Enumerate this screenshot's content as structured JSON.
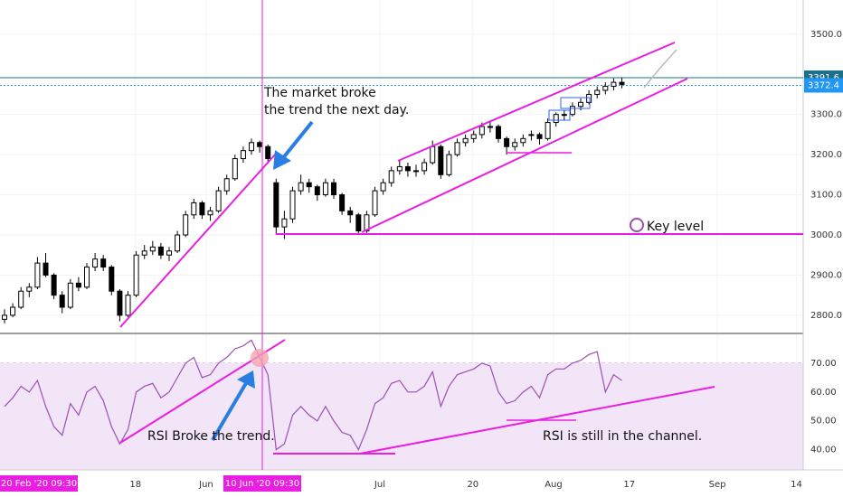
{
  "chart_data": [
    {
      "type": "candlestick",
      "ohlc": [
        [
          2790,
          2815,
          2780,
          2800
        ],
        [
          2800,
          2830,
          2795,
          2820
        ],
        [
          2820,
          2870,
          2815,
          2860
        ],
        [
          2860,
          2880,
          2845,
          2870
        ],
        [
          2870,
          2945,
          2865,
          2930
        ],
        [
          2930,
          2955,
          2895,
          2900
        ],
        [
          2900,
          2905,
          2840,
          2850
        ],
        [
          2850,
          2860,
          2805,
          2820
        ],
        [
          2820,
          2890,
          2815,
          2880
        ],
        [
          2880,
          2895,
          2860,
          2870
        ],
        [
          2870,
          2930,
          2865,
          2920
        ],
        [
          2920,
          2955,
          2910,
          2940
        ],
        [
          2940,
          2950,
          2910,
          2920
        ],
        [
          2920,
          2925,
          2850,
          2860
        ],
        [
          2860,
          2865,
          2785,
          2800
        ],
        [
          2800,
          2860,
          2795,
          2850
        ],
        [
          2850,
          2960,
          2845,
          2950
        ],
        [
          2950,
          2975,
          2940,
          2960
        ],
        [
          2960,
          2985,
          2950,
          2970
        ],
        [
          2970,
          2980,
          2940,
          2950
        ],
        [
          2950,
          2970,
          2935,
          2960
        ],
        [
          2960,
          3010,
          2955,
          3000
        ],
        [
          3000,
          3060,
          2995,
          3050
        ],
        [
          3050,
          3090,
          3040,
          3080
        ],
        [
          3080,
          3085,
          3040,
          3050
        ],
        [
          3050,
          3070,
          3035,
          3060
        ],
        [
          3060,
          3120,
          3055,
          3110
        ],
        [
          3110,
          3150,
          3100,
          3140
        ],
        [
          3140,
          3200,
          3135,
          3190
        ],
        [
          3190,
          3220,
          3180,
          3210
        ],
        [
          3210,
          3240,
          3200,
          3230
        ],
        [
          3230,
          3235,
          3205,
          3220
        ],
        [
          3220,
          3225,
          3180,
          3190
        ],
        [
          3130,
          3140,
          3000,
          3020
        ],
        [
          3020,
          3060,
          2990,
          3040
        ],
        [
          3040,
          3120,
          3030,
          3110
        ],
        [
          3110,
          3150,
          3100,
          3130
        ],
        [
          3130,
          3140,
          3105,
          3120
        ],
        [
          3120,
          3125,
          3085,
          3100
        ],
        [
          3100,
          3140,
          3095,
          3130
        ],
        [
          3130,
          3140,
          3090,
          3100
        ],
        [
          3100,
          3105,
          3050,
          3060
        ],
        [
          3060,
          3070,
          3030,
          3050
        ],
        [
          3050,
          3055,
          3000,
          3010
        ],
        [
          3010,
          3060,
          3005,
          3050
        ],
        [
          3050,
          3120,
          3045,
          3110
        ],
        [
          3110,
          3140,
          3100,
          3130
        ],
        [
          3130,
          3170,
          3120,
          3160
        ],
        [
          3160,
          3185,
          3150,
          3170
        ],
        [
          3170,
          3180,
          3145,
          3160
        ],
        [
          3160,
          3175,
          3145,
          3160
        ],
        [
          3160,
          3190,
          3150,
          3180
        ],
        [
          3180,
          3235,
          3175,
          3220
        ],
        [
          3220,
          3225,
          3140,
          3150
        ],
        [
          3150,
          3210,
          3145,
          3200
        ],
        [
          3200,
          3240,
          3195,
          3230
        ],
        [
          3230,
          3250,
          3220,
          3240
        ],
        [
          3240,
          3260,
          3230,
          3250
        ],
        [
          3250,
          3280,
          3240,
          3270
        ],
        [
          3270,
          3285,
          3255,
          3270
        ],
        [
          3270,
          3275,
          3230,
          3240
        ],
        [
          3240,
          3245,
          3200,
          3220
        ],
        [
          3220,
          3240,
          3210,
          3230
        ],
        [
          3230,
          3250,
          3220,
          3240
        ],
        [
          3250,
          3260,
          3235,
          3250
        ],
        [
          3250,
          3255,
          3225,
          3240
        ],
        [
          3240,
          3290,
          3235,
          3280
        ],
        [
          3280,
          3305,
          3270,
          3300
        ],
        [
          3300,
          3310,
          3285,
          3300
        ],
        [
          3300,
          3330,
          3295,
          3320
        ],
        [
          3320,
          3340,
          3310,
          3330
        ],
        [
          3330,
          3360,
          3325,
          3350
        ],
        [
          3350,
          3370,
          3340,
          3360
        ],
        [
          3360,
          3380,
          3350,
          3370
        ],
        [
          3370,
          3390,
          3360,
          3380
        ],
        [
          3380,
          3392,
          3365,
          3375
        ]
      ],
      "up_color": "#ffffff",
      "down_color": "#000000",
      "ylim": [
        2757,
        3585
      ],
      "yticks": [
        {
          "value": 2800,
          "label": "2800.0"
        },
        {
          "value": 2900,
          "label": "2900.0"
        },
        {
          "value": 3000,
          "label": "3000.0"
        },
        {
          "value": 3100,
          "label": "3100.0"
        },
        {
          "value": 3200,
          "label": "3200.0"
        },
        {
          "value": 3300,
          "label": "3300.0"
        },
        {
          "value": 3500,
          "label": "3500.0"
        }
      ],
      "xlim": [
        -0.55,
        97.03
      ],
      "xticks": [
        {
          "value": 15.9,
          "label": "18"
        },
        {
          "value": 24.5,
          "label": "Jun"
        },
        {
          "value": 45.6,
          "label": "Jul"
        },
        {
          "value": 56.9,
          "label": "20"
        },
        {
          "value": 66.7,
          "label": "Aug"
        },
        {
          "value": 75.9,
          "label": "17"
        },
        {
          "value": 86.6,
          "label": "Sep"
        },
        {
          "value": 96.2,
          "label": "14"
        }
      ],
      "grid": true,
      "price_lines": [
        {
          "value": 3391.6,
          "color": "#1e6f8a"
        },
        {
          "value": 3372.4,
          "color": "#2196f3"
        }
      ],
      "annotations": [
        "The market broke",
        "the trend the next day.",
        "Key level"
      ],
      "crosshair_labels": [
        "20 Feb '20   09:30",
        "10 Jun '20   09:30"
      ]
    },
    {
      "type": "line",
      "values": [
        55,
        58,
        62,
        60,
        64,
        55,
        48,
        45,
        56,
        52,
        60,
        62,
        57,
        48,
        42,
        47,
        60,
        62,
        63,
        58,
        60,
        65,
        70,
        72,
        65,
        66,
        70,
        72,
        75,
        76,
        78,
        72,
        66,
        40,
        42,
        52,
        55,
        52,
        50,
        55,
        50,
        46,
        45,
        40,
        47,
        56,
        58,
        63,
        64,
        60,
        60,
        62,
        67,
        55,
        62,
        66,
        67,
        68,
        70,
        69,
        60,
        56,
        57,
        60,
        62,
        58,
        66,
        68,
        68,
        70,
        71,
        73,
        74,
        60,
        66,
        64
      ],
      "color": "#9b4fb5",
      "ylim": [
        33,
        80
      ],
      "yticks": [
        {
          "value": 70,
          "label": "70.00"
        },
        {
          "value": 60,
          "label": "60.00"
        },
        {
          "value": 50,
          "label": "50.00"
        },
        {
          "value": 40,
          "label": "40.00"
        }
      ],
      "annotations": [
        "RSI Broke the trend.",
        "RSI is still in the channel."
      ]
    }
  ]
}
